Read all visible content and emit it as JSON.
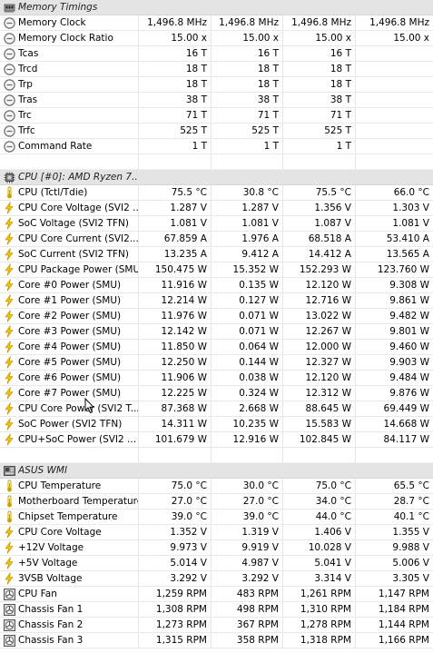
{
  "sections": [
    {
      "title": "Memory Timings",
      "icon": "memory-section-icon",
      "rows": [
        {
          "icon": "clock-icon",
          "label": "Memory Clock",
          "values": [
            "1,496.8 MHz",
            "1,496.8 MHz",
            "1,496.8 MHz",
            "1,496.8 MHz"
          ]
        },
        {
          "icon": "clock-icon",
          "label": "Memory Clock Ratio",
          "values": [
            "15.00 x",
            "15.00 x",
            "15.00 x",
            "15.00 x"
          ]
        },
        {
          "icon": "clock-icon",
          "label": "Tcas",
          "values": [
            "16 T",
            "16 T",
            "16 T",
            ""
          ]
        },
        {
          "icon": "clock-icon",
          "label": "Trcd",
          "values": [
            "18 T",
            "18 T",
            "18 T",
            ""
          ]
        },
        {
          "icon": "clock-icon",
          "label": "Trp",
          "values": [
            "18 T",
            "18 T",
            "18 T",
            ""
          ]
        },
        {
          "icon": "clock-icon",
          "label": "Tras",
          "values": [
            "38 T",
            "38 T",
            "38 T",
            ""
          ]
        },
        {
          "icon": "clock-icon",
          "label": "Trc",
          "values": [
            "71 T",
            "71 T",
            "71 T",
            ""
          ]
        },
        {
          "icon": "clock-icon",
          "label": "Trfc",
          "values": [
            "525 T",
            "525 T",
            "525 T",
            ""
          ]
        },
        {
          "icon": "clock-icon",
          "label": "Command Rate",
          "values": [
            "1 T",
            "1 T",
            "1 T",
            ""
          ]
        }
      ]
    },
    {
      "title": "CPU [#0]: AMD Ryzen 7...",
      "icon": "cpu-section-icon",
      "rows": [
        {
          "icon": "thermometer-icon",
          "label": "CPU (Tctl/Tdie)",
          "values": [
            "75.5 °C",
            "30.8 °C",
            "75.5 °C",
            "66.0 °C"
          ]
        },
        {
          "icon": "lightning-icon",
          "label": "CPU Core Voltage (SVI2 ...",
          "values": [
            "1.287 V",
            "1.287 V",
            "1.356 V",
            "1.303 V"
          ]
        },
        {
          "icon": "lightning-icon",
          "label": "SoC Voltage (SVI2 TFN)",
          "values": [
            "1.081 V",
            "1.081 V",
            "1.087 V",
            "1.081 V"
          ]
        },
        {
          "icon": "lightning-icon",
          "label": "CPU Core Current (SVI2...",
          "values": [
            "67.859 A",
            "1.976 A",
            "68.518 A",
            "53.410 A"
          ]
        },
        {
          "icon": "lightning-icon",
          "label": "SoC Current (SVI2 TFN)",
          "values": [
            "13.235 A",
            "9.412 A",
            "14.412 A",
            "13.565 A"
          ]
        },
        {
          "icon": "lightning-icon",
          "label": "CPU Package Power (SMU)",
          "values": [
            "150.475 W",
            "15.352 W",
            "152.293 W",
            "123.760 W"
          ]
        },
        {
          "icon": "lightning-icon",
          "label": "Core #0 Power (SMU)",
          "values": [
            "11.916 W",
            "0.135 W",
            "12.120 W",
            "9.308 W"
          ]
        },
        {
          "icon": "lightning-icon",
          "label": "Core #1 Power (SMU)",
          "values": [
            "12.214 W",
            "0.127 W",
            "12.716 W",
            "9.861 W"
          ]
        },
        {
          "icon": "lightning-icon",
          "label": "Core #2 Power (SMU)",
          "values": [
            "11.976 W",
            "0.071 W",
            "13.022 W",
            "9.482 W"
          ]
        },
        {
          "icon": "lightning-icon",
          "label": "Core #3 Power (SMU)",
          "values": [
            "12.142 W",
            "0.071 W",
            "12.267 W",
            "9.801 W"
          ]
        },
        {
          "icon": "lightning-icon",
          "label": "Core #4 Power (SMU)",
          "values": [
            "11.850 W",
            "0.064 W",
            "12.000 W",
            "9.460 W"
          ]
        },
        {
          "icon": "lightning-icon",
          "label": "Core #5 Power (SMU)",
          "values": [
            "12.250 W",
            "0.144 W",
            "12.327 W",
            "9.903 W"
          ]
        },
        {
          "icon": "lightning-icon",
          "label": "Core #6 Power (SMU)",
          "values": [
            "11.906 W",
            "0.038 W",
            "12.120 W",
            "9.484 W"
          ]
        },
        {
          "icon": "lightning-icon",
          "label": "Core #7 Power (SMU)",
          "values": [
            "12.225 W",
            "0.324 W",
            "12.312 W",
            "9.876 W"
          ]
        },
        {
          "icon": "lightning-icon",
          "label": "CPU Core Power (SVI2 T...",
          "values": [
            "87.368 W",
            "2.668 W",
            "88.645 W",
            "69.449 W"
          ]
        },
        {
          "icon": "lightning-icon",
          "label": "SoC Power (SVI2 TFN)",
          "values": [
            "14.311 W",
            "10.235 W",
            "15.583 W",
            "14.668 W"
          ]
        },
        {
          "icon": "lightning-icon",
          "label": "CPU+SoC Power (SVI2 ...",
          "values": [
            "101.679 W",
            "12.916 W",
            "102.845 W",
            "84.117 W"
          ]
        }
      ]
    },
    {
      "title": "ASUS WMI",
      "icon": "board-section-icon",
      "rows": [
        {
          "icon": "thermometer-icon",
          "label": "CPU Temperature",
          "values": [
            "75.0 °C",
            "30.0 °C",
            "75.0 °C",
            "65.5 °C"
          ]
        },
        {
          "icon": "thermometer-icon",
          "label": "Motherboard Temperature",
          "values": [
            "27.0 °C",
            "27.0 °C",
            "34.0 °C",
            "28.7 °C"
          ]
        },
        {
          "icon": "thermometer-icon",
          "label": "Chipset Temperature",
          "values": [
            "39.0 °C",
            "39.0 °C",
            "44.0 °C",
            "40.1 °C"
          ]
        },
        {
          "icon": "lightning-icon",
          "label": "CPU Core Voltage",
          "values": [
            "1.352 V",
            "1.319 V",
            "1.406 V",
            "1.355 V"
          ]
        },
        {
          "icon": "lightning-icon",
          "label": "+12V Voltage",
          "values": [
            "9.973 V",
            "9.919 V",
            "10.028 V",
            "9.988 V"
          ]
        },
        {
          "icon": "lightning-icon",
          "label": "+5V Voltage",
          "values": [
            "5.014 V",
            "4.987 V",
            "5.041 V",
            "5.006 V"
          ]
        },
        {
          "icon": "lightning-icon",
          "label": "3VSB Voltage",
          "values": [
            "3.292 V",
            "3.292 V",
            "3.314 V",
            "3.305 V"
          ]
        },
        {
          "icon": "fan-icon",
          "label": "CPU Fan",
          "values": [
            "1,259 RPM",
            "483 RPM",
            "1,261 RPM",
            "1,147 RPM"
          ]
        },
        {
          "icon": "fan-icon",
          "label": "Chassis Fan 1",
          "values": [
            "1,308 RPM",
            "498 RPM",
            "1,310 RPM",
            "1,184 RPM"
          ]
        },
        {
          "icon": "fan-icon",
          "label": "Chassis Fan 2",
          "values": [
            "1,273 RPM",
            "367 RPM",
            "1,278 RPM",
            "1,144 RPM"
          ]
        },
        {
          "icon": "fan-icon",
          "label": "Chassis Fan 3",
          "values": [
            "1,315 RPM",
            "358 RPM",
            "1,318 RPM",
            "1,166 RPM"
          ]
        }
      ]
    }
  ],
  "colors": {
    "header_bg": "#e4e4e4",
    "lightning": "#f2c500",
    "thermometer": "#c8a000",
    "clock_gray": "#6b6b6b",
    "fan_gray": "#555555"
  }
}
